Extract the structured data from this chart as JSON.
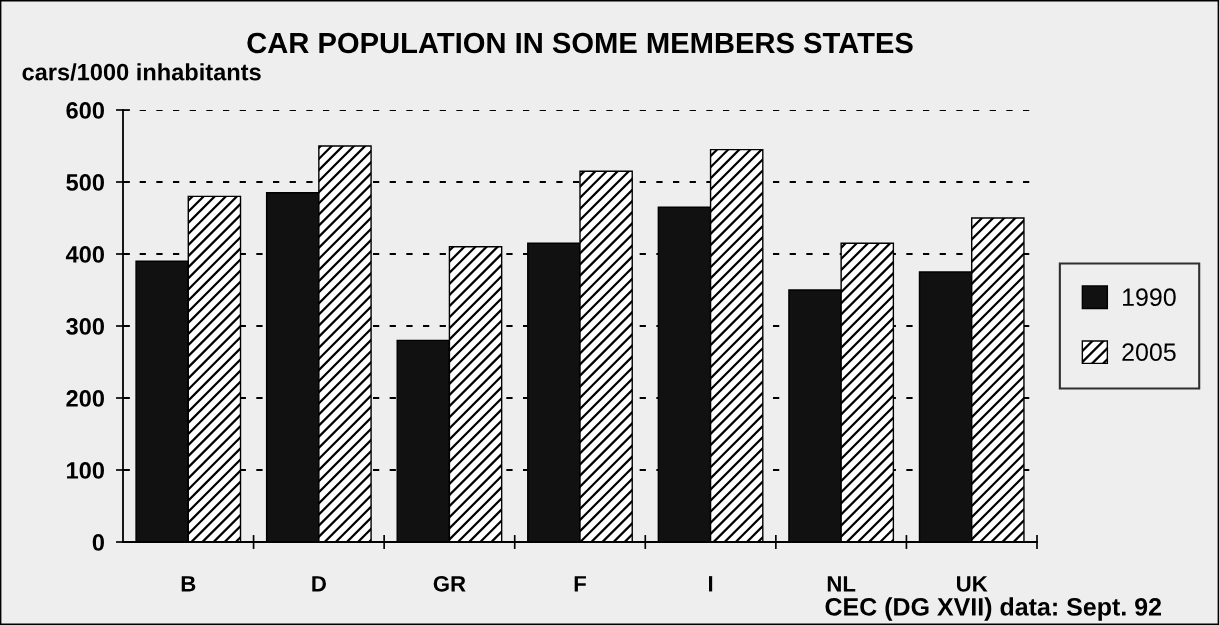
{
  "chart_data": {
    "type": "bar",
    "title": "CAR POPULATION IN SOME MEMBERS STATES",
    "ylabel": "cars/1000 inhabitants",
    "categories": [
      "B",
      "D",
      "GR",
      "F",
      "I",
      "NL",
      "UK"
    ],
    "series": [
      {
        "name": "1990",
        "color": "#111111",
        "values": [
          390,
          485,
          280,
          415,
          465,
          350,
          375
        ]
      },
      {
        "name": "2005",
        "color": "#000000",
        "values": [
          480,
          550,
          410,
          515,
          545,
          415,
          450
        ]
      }
    ],
    "ylim": [
      0,
      600
    ],
    "yticks": [
      0,
      100,
      200,
      300,
      400,
      500,
      600
    ],
    "grid": "y",
    "legend": "right",
    "annotations": [
      "CEC (DG XVII) data: Sept. 92"
    ]
  }
}
